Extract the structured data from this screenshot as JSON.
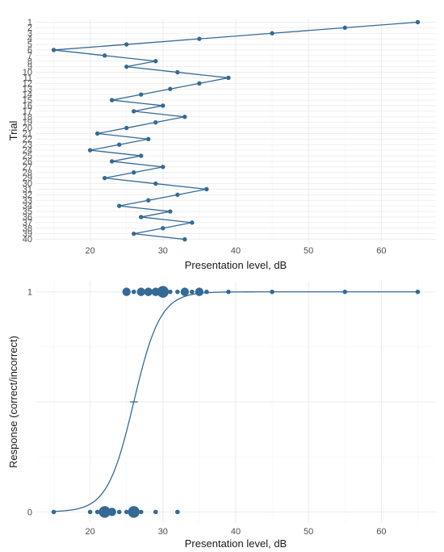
{
  "colors": {
    "series": "#346a95",
    "grid_major": "#ebebeb",
    "grid_minor": "#f4f4f4",
    "background": "#ffffff"
  },
  "chart_data": [
    {
      "type": "line",
      "xlabel": "Presentation level, dB",
      "ylabel": "Trial",
      "xlim": [
        12.5,
        67.5
      ],
      "ylim": [
        0.5,
        40.5
      ],
      "y_reversed": true,
      "grid": true,
      "x_ticks": [
        20,
        30,
        40,
        50,
        60
      ],
      "x_tick_labels": [
        "20",
        "30",
        "40",
        "50",
        "60"
      ],
      "y_ticks": [
        1,
        2,
        3,
        4,
        5,
        6,
        7,
        8,
        9,
        10,
        11,
        12,
        13,
        14,
        15,
        16,
        17,
        18,
        19,
        20,
        21,
        22,
        23,
        24,
        25,
        26,
        27,
        28,
        29,
        30,
        31,
        32,
        33,
        34,
        35,
        36,
        37,
        38,
        39,
        40
      ],
      "y_tick_labels": [
        "1",
        "2",
        "3",
        "4",
        "5",
        "6",
        "7",
        "8",
        "9",
        "10",
        "11",
        "12",
        "13",
        "14",
        "15",
        "16",
        "17",
        "18",
        "19",
        "20",
        "21",
        "22",
        "23",
        "24",
        "25",
        "26",
        "27",
        "28",
        "29",
        "30",
        "31",
        "32",
        "33",
        "34",
        "35",
        "36",
        "37",
        "38",
        "39",
        "40"
      ],
      "series": [
        {
          "trial": [
            1,
            2,
            3,
            4,
            5,
            6,
            7,
            8,
            9,
            10,
            11,
            12,
            13,
            14,
            15,
            16,
            17,
            18,
            19,
            20,
            21,
            22,
            23,
            24,
            25,
            26,
            27,
            28,
            29,
            30,
            31,
            32,
            33,
            34,
            35,
            36,
            37,
            38,
            39,
            40
          ],
          "level": [
            65,
            55,
            45,
            35,
            25,
            15,
            22,
            29,
            25,
            32,
            39,
            35,
            31,
            27,
            23,
            30,
            26,
            33,
            29,
            25,
            21,
            28,
            24,
            20,
            27,
            23,
            30,
            26,
            22,
            29,
            36,
            32,
            28,
            24,
            31,
            27,
            34,
            30,
            26,
            33
          ]
        }
      ]
    },
    {
      "type": "scatter",
      "xlabel": "Presentation level, dB",
      "ylabel": "Response (correct/incorrect)",
      "xlim": [
        12.5,
        67.5
      ],
      "ylim": [
        -0.05,
        1.05
      ],
      "grid": true,
      "x_ticks": [
        20,
        30,
        40,
        50,
        60
      ],
      "x_tick_labels": [
        "20",
        "30",
        "40",
        "50",
        "60"
      ],
      "y_ticks": [
        0,
        1
      ],
      "y_tick_labels": [
        "0",
        "1"
      ],
      "points": [
        {
          "x": 15,
          "y": 0,
          "n": 1
        },
        {
          "x": 20,
          "y": 0,
          "n": 1
        },
        {
          "x": 21,
          "y": 0,
          "n": 1
        },
        {
          "x": 22,
          "y": 0,
          "n": 3
        },
        {
          "x": 23,
          "y": 0,
          "n": 2
        },
        {
          "x": 24,
          "y": 0,
          "n": 1
        },
        {
          "x": 25,
          "y": 0,
          "n": 1
        },
        {
          "x": 26,
          "y": 0,
          "n": 3
        },
        {
          "x": 27,
          "y": 0,
          "n": 1
        },
        {
          "x": 29,
          "y": 0,
          "n": 1
        },
        {
          "x": 32,
          "y": 0,
          "n": 1
        },
        {
          "x": 25,
          "y": 1,
          "n": 2
        },
        {
          "x": 26,
          "y": 1,
          "n": 1
        },
        {
          "x": 27,
          "y": 1,
          "n": 2
        },
        {
          "x": 28,
          "y": 1,
          "n": 2
        },
        {
          "x": 29,
          "y": 1,
          "n": 2
        },
        {
          "x": 30,
          "y": 1,
          "n": 3
        },
        {
          "x": 31,
          "y": 1,
          "n": 1
        },
        {
          "x": 32,
          "y": 1,
          "n": 1
        },
        {
          "x": 33,
          "y": 1,
          "n": 2
        },
        {
          "x": 34,
          "y": 1,
          "n": 1
        },
        {
          "x": 35,
          "y": 1,
          "n": 2
        },
        {
          "x": 36,
          "y": 1,
          "n": 1
        },
        {
          "x": 39,
          "y": 1,
          "n": 1
        },
        {
          "x": 45,
          "y": 1,
          "n": 1
        },
        {
          "x": 55,
          "y": 1,
          "n": 1
        },
        {
          "x": 65,
          "y": 1,
          "n": 1
        }
      ],
      "fit": {
        "type": "logistic",
        "midpoint": 26,
        "slope": 0.55
      },
      "threshold_marker": {
        "x": 26,
        "y": 0.5
      }
    }
  ]
}
